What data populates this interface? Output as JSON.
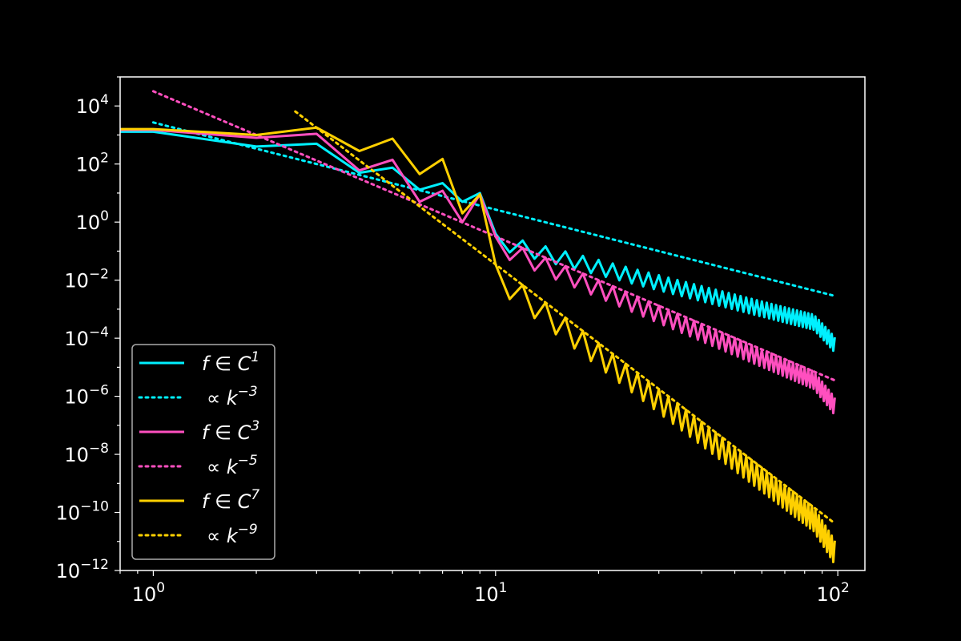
{
  "chart_data": {
    "type": "line",
    "title": "",
    "xlabel": "",
    "ylabel": "",
    "xscale": "log",
    "yscale": "log",
    "xlim": [
      0.8,
      120
    ],
    "ylim": [
      1e-12,
      100000.0
    ],
    "grid": false,
    "legend_position": "lower-left",
    "background": "#000000",
    "x_ticks": [
      {
        "base": "10",
        "exp": "0",
        "value": 1
      },
      {
        "base": "10",
        "exp": "1",
        "value": 10
      },
      {
        "base": "10",
        "exp": "2",
        "value": 100
      }
    ],
    "y_ticks": [
      {
        "base": "10",
        "exp": "4",
        "value": 10000
      },
      {
        "base": "10",
        "exp": "2",
        "value": 100
      },
      {
        "base": "10",
        "exp": "0",
        "value": 1
      },
      {
        "base": "10",
        "exp": "−2",
        "value": 0.01
      },
      {
        "base": "10",
        "exp": "−4",
        "value": 0.0001
      },
      {
        "base": "10",
        "exp": "−6",
        "value": 1e-06
      },
      {
        "base": "10",
        "exp": "−8",
        "value": 1e-08
      },
      {
        "base": "10",
        "exp": "−10",
        "value": 1e-10
      },
      {
        "base": "10",
        "exp": "−12",
        "value": 1e-12
      }
    ],
    "series": [
      {
        "label_main": "f ∈ C",
        "label_exp": "1",
        "style": "solid",
        "color": "#00f0ff",
        "x_start": 1,
        "x_end": 98,
        "envelope_amplitude": 400,
        "envelope_power": -3,
        "oscillation_dip": 0.3,
        "head_points": [
          [
            0.8,
            1300
          ],
          [
            1,
            1300
          ],
          [
            2,
            400
          ],
          [
            3,
            500
          ],
          [
            4,
            50
          ],
          [
            5,
            75
          ],
          [
            6,
            13
          ],
          [
            7,
            22
          ],
          [
            8,
            5
          ],
          [
            9,
            10
          ]
        ]
      },
      {
        "label_main": "∝ k",
        "label_exp": "−3",
        "style": "dotted",
        "color": "#00f0ff",
        "x_start": 1,
        "x_end": 98,
        "coef": 2700,
        "power": -3
      },
      {
        "label_main": "f ∈ C",
        "label_exp": "3",
        "style": "solid",
        "color": "#ff4fbf",
        "x_start": 1,
        "x_end": 98,
        "envelope_amplitude": 32000,
        "envelope_power": -5,
        "oscillation_dip": 0.25,
        "head_points": [
          [
            0.8,
            1500
          ],
          [
            1,
            1500
          ],
          [
            2,
            800
          ],
          [
            3,
            1100
          ],
          [
            4,
            60
          ],
          [
            5,
            140
          ],
          [
            6,
            5
          ],
          [
            7,
            12
          ],
          [
            8,
            1
          ],
          [
            9,
            9
          ]
        ]
      },
      {
        "label_main": "∝ k",
        "label_exp": "−5",
        "style": "dotted",
        "color": "#ff4fbf",
        "x_start": 1,
        "x_end": 98,
        "coef": 32000,
        "power": -5
      },
      {
        "label_main": "f ∈ C",
        "label_exp": "7",
        "style": "solid",
        "color": "#ffd000",
        "x_start": 1,
        "x_end": 98,
        "envelope_amplitude": 35000000.0,
        "envelope_power": -9,
        "oscillation_dip": 0.15,
        "head_points": [
          [
            0.8,
            1600
          ],
          [
            1,
            1600
          ],
          [
            2,
            1000
          ],
          [
            3,
            1800
          ],
          [
            4,
            280
          ],
          [
            5,
            750
          ],
          [
            6,
            45
          ],
          [
            7,
            150
          ],
          [
            8,
            2
          ],
          [
            9,
            9
          ]
        ]
      },
      {
        "label_main": "∝ k",
        "label_exp": "−9",
        "style": "dotted",
        "color": "#ffd000",
        "x_start": 2.6,
        "x_end": 98,
        "coef": 35000000.0,
        "power": -9
      }
    ]
  }
}
